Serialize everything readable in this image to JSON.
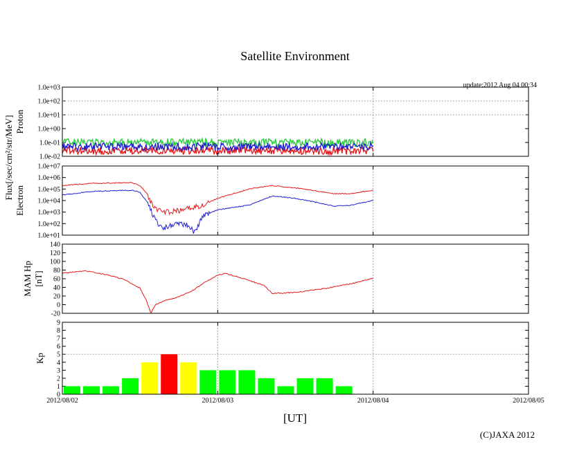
{
  "chart_data": {
    "type": "multi-panel",
    "title": "Satellite Environment",
    "update": "update:2012 Aug 04 00:34",
    "copyright": "(C)JAXA 2012",
    "xlabel": "[UT]",
    "x_ticks": [
      "2012/08/02",
      "2012/08/03",
      "2012/08/04",
      "2012/08/05"
    ],
    "x_range_days": [
      0,
      3
    ],
    "data_end_day": 2.0,
    "flux_label": "Flux[/sec/cm²/str/MeV]",
    "panels": [
      {
        "name": "proton",
        "type": "line",
        "ylabel": "Proton",
        "scale": "log",
        "ylim_exp": [
          -2,
          3
        ],
        "y_ticks": [
          "1.0e-02",
          "1.0e-01",
          "1.0e+00",
          "1.0e+01",
          "1.0e+02",
          "1.0e+03"
        ],
        "series": [
          {
            "name": "proton-red",
            "color": "#e41a1c",
            "x": [
              0,
              2.0
            ],
            "y_exp": [
              -1.6,
              -1.6
            ]
          },
          {
            "name": "proton-green",
            "color": "#2ecc40",
            "x": [
              0,
              2.0
            ],
            "y_exp": [
              -1.0,
              -1.0
            ]
          },
          {
            "name": "proton-blue",
            "color": "#1f1fd1",
            "x": [
              0,
              2.0
            ],
            "y_exp": [
              -1.3,
              -1.3
            ]
          }
        ]
      },
      {
        "name": "electron",
        "type": "line",
        "ylabel": "Electron",
        "scale": "log",
        "ylim_exp": [
          1,
          7
        ],
        "y_ticks": [
          "1.0e+01",
          "1.0e+02",
          "1.0e+03",
          "1.0e+04",
          "1.0e+05",
          "1.0e+06",
          "1.0e+07"
        ],
        "series": [
          {
            "name": "electron-red",
            "color": "#e41a1c",
            "x": [
              0,
              0.2,
              0.45,
              0.5,
              0.55,
              0.58,
              0.62,
              0.7,
              0.78,
              0.9,
              1.0,
              1.1,
              1.2,
              1.35,
              1.5,
              1.65,
              1.75,
              1.85,
              2.0
            ],
            "y_exp": [
              5.3,
              5.5,
              5.55,
              5.3,
              4.5,
              3.5,
              3.1,
              3.0,
              3.2,
              3.6,
              4.2,
              4.6,
              5.0,
              5.3,
              5.1,
              4.8,
              4.6,
              4.6,
              4.9
            ]
          },
          {
            "name": "electron-blue",
            "color": "#1f1fd1",
            "x": [
              0,
              0.2,
              0.45,
              0.5,
              0.55,
              0.6,
              0.65,
              0.72,
              0.8,
              0.85,
              0.9,
              1.0,
              1.2,
              1.35,
              1.5,
              1.65,
              1.75,
              1.85,
              2.0
            ],
            "y_exp": [
              4.5,
              4.8,
              4.9,
              4.7,
              3.8,
              2.2,
              1.6,
              1.9,
              2.0,
              1.2,
              2.6,
              3.2,
              3.6,
              4.4,
              4.2,
              3.8,
              3.5,
              3.6,
              4.0
            ]
          }
        ]
      },
      {
        "name": "hp",
        "type": "line",
        "ylabel": "MAM Hp",
        "ylabel2": "[nT]",
        "scale": "linear",
        "ylim": [
          -20,
          140
        ],
        "y_ticks": [
          "-20",
          "0",
          "20",
          "40",
          "60",
          "80",
          "100",
          "120",
          "140"
        ],
        "series": [
          {
            "name": "hp-red",
            "color": "#e41a1c",
            "x": [
              0,
              0.15,
              0.3,
              0.4,
              0.5,
              0.54,
              0.57,
              0.6,
              0.65,
              0.75,
              0.85,
              0.9,
              1.0,
              1.05,
              1.15,
              1.3,
              1.35,
              1.5,
              1.7,
              1.85,
              2.0
            ],
            "y": [
              73,
              78,
              68,
              58,
              38,
              10,
              -19,
              0,
              8,
              18,
              35,
              48,
              68,
              72,
              62,
              44,
              26,
              28,
              38,
              48,
              61
            ]
          }
        ]
      },
      {
        "name": "kp",
        "type": "bar",
        "ylabel": "Kp",
        "ylim": [
          0,
          9
        ],
        "y_ticks": [
          "0",
          "1",
          "2",
          "3",
          "4",
          "5",
          "6",
          "7",
          "8",
          "9"
        ],
        "bar_width_days": 0.125,
        "values": [
          1,
          1,
          1,
          2,
          4,
          5,
          4,
          3,
          3,
          3,
          2,
          1,
          2,
          2,
          1
        ],
        "colors": {
          "low": "#00ff00",
          "mid": "#ffff00",
          "high": "#ff0000"
        }
      }
    ]
  }
}
